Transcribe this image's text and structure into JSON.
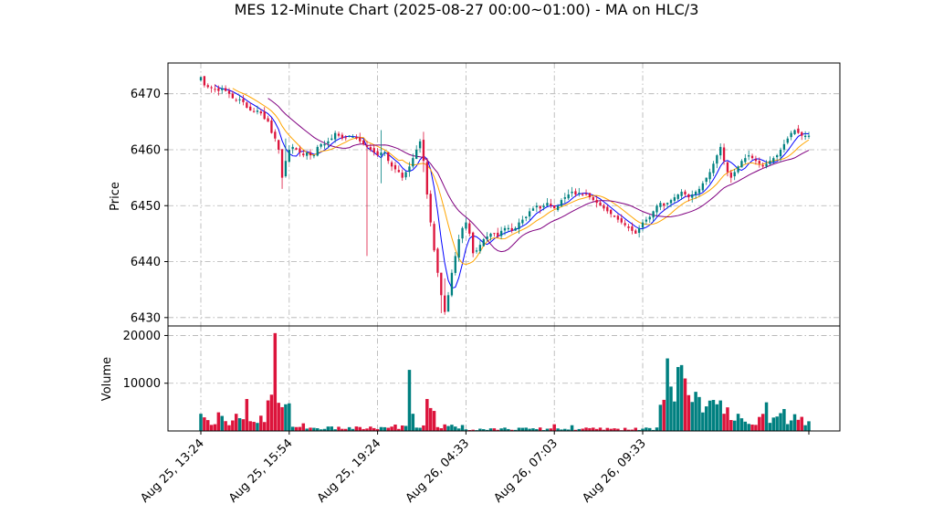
{
  "chart_data": {
    "type": "candlestick",
    "title": "MES 12-Minute Chart (2025-08-27 00:00~01:00) - MA on HLC/3",
    "price_panel": {
      "ylabel": "Price",
      "ylim": [
        6428.5,
        6475.5
      ],
      "yticks": [
        6430,
        6440,
        6450,
        6460,
        6470
      ],
      "grid": true
    },
    "volume_panel": {
      "ylabel": "Volume",
      "ylim": [
        0,
        22000
      ],
      "yticks": [
        10000,
        20000
      ],
      "grid": true
    },
    "x_tick_labels": [
      "Aug 25, 13:24",
      "Aug 25, 15:54",
      "Aug 25, 19:24",
      "Aug 26, 04:33",
      "Aug 26, 07:03",
      "Aug 26, 09:33"
    ],
    "x_tick_indices": [
      0,
      25,
      50,
      75,
      100,
      125
    ],
    "colors": {
      "up": "#008080",
      "down": "#dc143c",
      "ma_fast": "#0000ff",
      "ma_mid": "#ffa500",
      "ma_slow": "#800080",
      "volume_up": "#008080",
      "volume_down": "#dc143c"
    },
    "close": [
      6473,
      6471.5,
      6471.2,
      6471,
      6470.8,
      6470.5,
      6471,
      6470.5,
      6470,
      6469.2,
      6468.8,
      6469,
      6468.5,
      6467.5,
      6467,
      6466.8,
      6467,
      6466.5,
      6465.5,
      6465,
      6463,
      6462,
      6460,
      6455,
      6458,
      6460,
      6460.5,
      6460,
      6459.5,
      6459,
      6459.5,
      6459,
      6459,
      6460.5,
      6461,
      6461,
      6461.5,
      6462,
      6463,
      6462.5,
      6462,
      6462.2,
      6462.5,
      6462.3,
      6462,
      6461.5,
      6461,
      6460.5,
      6460,
      6459.5,
      6459,
      6459.5,
      6459.5,
      6458,
      6457,
      6456.5,
      6456,
      6455,
      6456,
      6457,
      6458.5,
      6460,
      6461.5,
      6458,
      6452,
      6447,
      6442,
      6438,
      6434,
      6431,
      6434,
      6438,
      6441,
      6444,
      6446,
      6447,
      6445,
      6441.5,
      6442,
      6443,
      6444,
      6444.5,
      6445,
      6445,
      6444.5,
      6445.5,
      6446,
      6446,
      6445.5,
      6446,
      6447,
      6447.5,
      6448,
      6449,
      6449.5,
      6450,
      6449.5,
      6450,
      6450.5,
      6450,
      6449.5,
      6450,
      6451,
      6451.5,
      6452,
      6452.5,
      6452,
      6452.3,
      6452,
      6452,
      6451.5,
      6451,
      6450.5,
      6450,
      6449.5,
      6449,
      6448.5,
      6448,
      6447.5,
      6447,
      6446.5,
      6446,
      6445.5,
      6445,
      6446,
      6447,
      6447.5,
      6448,
      6449,
      6450,
      6450.5,
      6450,
      6450.5,
      6451,
      6451.5,
      6452,
      6452.5,
      6452,
      6451.5,
      6452,
      6452.5,
      6453,
      6454,
      6455,
      6456,
      6457.5,
      6459,
      6460.5,
      6458,
      6456,
      6455,
      6456,
      6457,
      6458,
      6458.5,
      6459,
      6458.5,
      6458,
      6457.5,
      6457,
      6457.5,
      6458,
      6458.5,
      6459,
      6460,
      6461,
      6462,
      6463,
      6463.5,
      6463,
      6462.5,
      6462.5,
      6462.5
    ]
  },
  "price_axis": {
    "label": "Price",
    "ticks": [
      "6430",
      "6440",
      "6450",
      "6460",
      "6470"
    ]
  },
  "volume_axis": {
    "label": "Volume",
    "ticks": [
      "10000",
      "20000"
    ]
  }
}
